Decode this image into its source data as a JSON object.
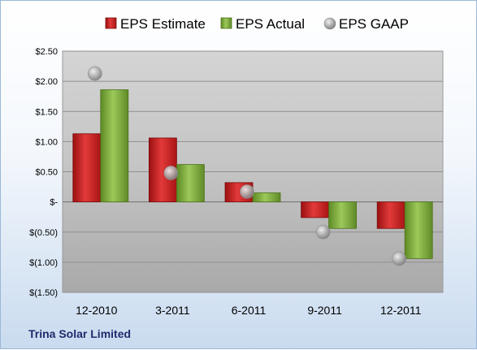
{
  "company": "Trina Solar Limited",
  "chart_data": {
    "type": "bar",
    "title": "",
    "xlabel": "",
    "ylabel": "",
    "categories": [
      "12-2010",
      "3-2011",
      "6-2011",
      "9-2011",
      "12-2011"
    ],
    "series": [
      {
        "name": "EPS Estimate",
        "kind": "bar",
        "color": "#d42a2a",
        "values": [
          1.13,
          1.06,
          0.32,
          -0.26,
          -0.44
        ]
      },
      {
        "name": "EPS Actual",
        "kind": "bar",
        "color": "#7fae3c",
        "values": [
          1.86,
          0.62,
          0.15,
          -0.44,
          -0.94
        ]
      },
      {
        "name": "EPS GAAP",
        "kind": "marker",
        "color": "#a6a6a6",
        "values": [
          2.13,
          0.48,
          0.17,
          -0.5,
          -0.94
        ]
      }
    ],
    "ylim": [
      -1.5,
      2.5
    ],
    "yticks": [
      2.5,
      2.0,
      1.5,
      1.0,
      0.5,
      0,
      -0.5,
      -1.0,
      -1.5
    ],
    "ytick_labels": [
      "$2.50",
      "$2.00",
      "$1.50",
      "$1.00",
      "$0.50",
      "$-",
      "$(0.50)",
      "$(1.00)",
      "$(1.50)"
    ],
    "grid": true,
    "legend": "top"
  }
}
